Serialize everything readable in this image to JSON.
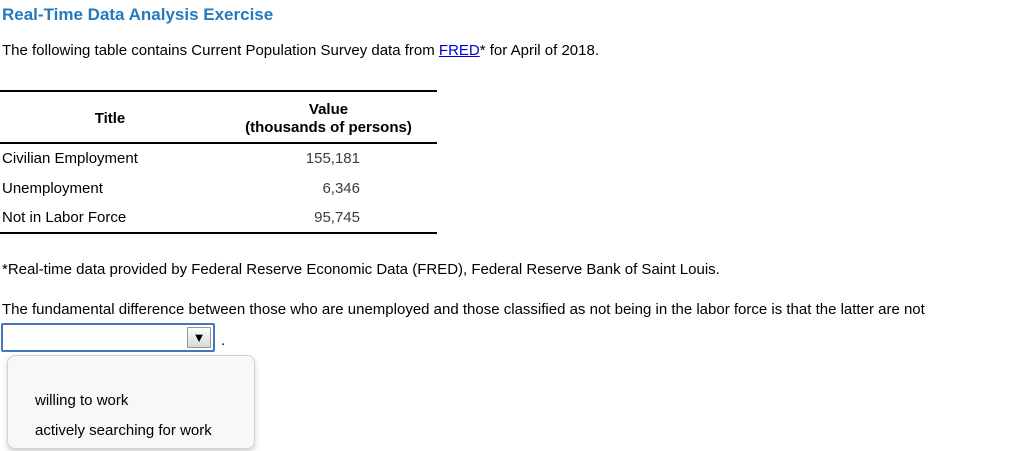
{
  "title": "Real-Time Data Analysis Exercise",
  "intro": {
    "before_link": "The following table contains Current Population Survey data from ",
    "link_text": "FRED",
    "after_link": "* for April of 2018."
  },
  "table": {
    "headers": {
      "title": "Title",
      "value_line1": "Value",
      "value_line2": "(thousands of persons)"
    },
    "rows": [
      {
        "title": "Civilian Employment",
        "value": "155,181"
      },
      {
        "title": "Unemployment",
        "value": "6,346"
      },
      {
        "title": "Not in Labor Force",
        "value": "95,745"
      }
    ]
  },
  "footnote": "*Real-time data provided by Federal Reserve Economic Data (FRED), Federal Reserve Bank of Saint Louis.",
  "question": "The fundamental difference between those who are unemployed and those classified as not being in the labor force is that the latter are not",
  "dropdown": {
    "selected_value": "",
    "period": ".",
    "options": [
      "willing to work",
      "actively searching for work"
    ]
  },
  "icons": {
    "dropdown_arrow": "▼"
  },
  "colors": {
    "title_blue": "#2579bd",
    "link_blue": "#0000dd",
    "select_border_blue": "#4577bb"
  }
}
